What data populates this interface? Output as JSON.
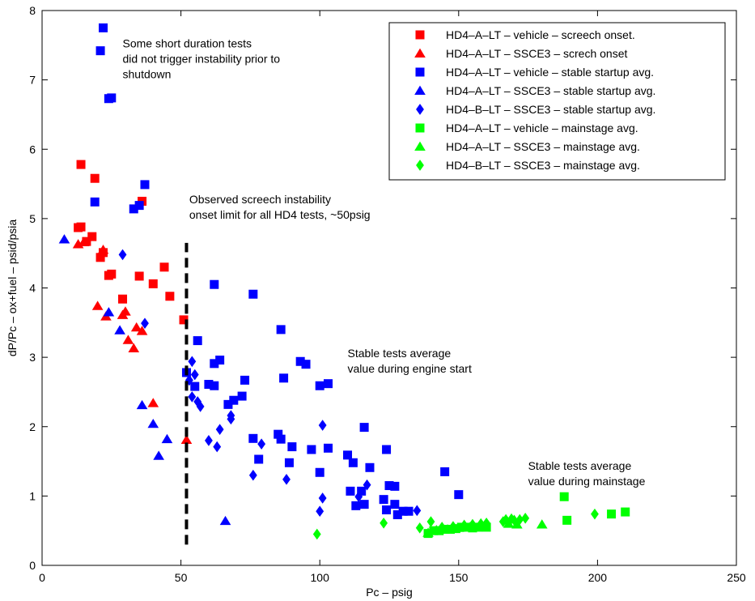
{
  "chart_data": {
    "type": "scatter",
    "xlabel": "Pc – psig",
    "ylabel": "dP/Pc – ox+fuel – psid/psia",
    "xlim": [
      0,
      250
    ],
    "ylim": [
      0,
      8
    ],
    "xticks": [
      0,
      50,
      100,
      150,
      200,
      250
    ],
    "yticks": [
      0,
      1,
      2,
      3,
      4,
      5,
      6,
      7,
      8
    ],
    "grid": false,
    "legend_position": "top-right",
    "series": [
      {
        "name": "HD4–A–LT – vehicle – screech onset.",
        "marker": "square",
        "color": "#ff0000",
        "points": [
          [
            13,
            4.87
          ],
          [
            14,
            5.78
          ],
          [
            14,
            4.88
          ],
          [
            16,
            4.67
          ],
          [
            18,
            4.74
          ],
          [
            19,
            5.58
          ],
          [
            21,
            4.44
          ],
          [
            22,
            4.51
          ],
          [
            24,
            4.18
          ],
          [
            25,
            4.2
          ],
          [
            29,
            3.84
          ],
          [
            35,
            4.17
          ],
          [
            36,
            5.25
          ],
          [
            40,
            4.06
          ],
          [
            44,
            4.3
          ],
          [
            46,
            3.88
          ],
          [
            51,
            3.54
          ]
        ]
      },
      {
        "name": "HD4–A–LT – SSCE3 – screch onset",
        "marker": "triangle",
        "color": "#ff0000",
        "points": [
          [
            13,
            4.63
          ],
          [
            15,
            4.66
          ],
          [
            20,
            3.74
          ],
          [
            22,
            4.55
          ],
          [
            23,
            3.59
          ],
          [
            29,
            3.61
          ],
          [
            30,
            3.66
          ],
          [
            31,
            3.25
          ],
          [
            33,
            3.13
          ],
          [
            34,
            3.43
          ],
          [
            36,
            3.38
          ],
          [
            40,
            2.34
          ],
          [
            52,
            1.81
          ]
        ]
      },
      {
        "name": "HD4–A–LT – vehicle – stable startup avg.",
        "marker": "square",
        "color": "#0000ff",
        "points": [
          [
            21,
            7.42
          ],
          [
            22,
            7.75
          ],
          [
            24,
            6.73
          ],
          [
            25,
            6.74
          ],
          [
            19,
            5.24
          ],
          [
            33,
            5.14
          ],
          [
            35,
            5.19
          ],
          [
            37,
            5.49
          ],
          [
            52,
            2.78
          ],
          [
            55,
            2.58
          ],
          [
            56,
            3.24
          ],
          [
            60,
            2.61
          ],
          [
            62,
            2.59
          ],
          [
            62,
            4.05
          ],
          [
            62,
            2.91
          ],
          [
            64,
            2.96
          ],
          [
            67,
            2.32
          ],
          [
            69,
            2.38
          ],
          [
            72,
            2.44
          ],
          [
            73,
            2.67
          ],
          [
            76,
            1.83
          ],
          [
            76,
            3.91
          ],
          [
            78,
            1.53
          ],
          [
            85,
            1.89
          ],
          [
            86,
            1.82
          ],
          [
            86,
            3.4
          ],
          [
            87,
            2.7
          ],
          [
            89,
            1.48
          ],
          [
            90,
            1.71
          ],
          [
            93,
            2.94
          ],
          [
            95,
            2.9
          ],
          [
            97,
            1.67
          ],
          [
            100,
            1.34
          ],
          [
            100,
            2.59
          ],
          [
            103,
            2.62
          ],
          [
            103,
            1.69
          ],
          [
            110,
            1.59
          ],
          [
            111,
            1.07
          ],
          [
            112,
            1.48
          ],
          [
            113,
            0.86
          ],
          [
            115,
            1.07
          ],
          [
            116,
            0.88
          ],
          [
            116,
            1.99
          ],
          [
            118,
            1.41
          ],
          [
            123,
            0.95
          ],
          [
            124,
            0.8
          ],
          [
            124,
            1.67
          ],
          [
            125,
            1.15
          ],
          [
            127,
            1.14
          ],
          [
            127,
            0.88
          ],
          [
            128,
            0.73
          ],
          [
            130,
            0.78
          ],
          [
            132,
            0.78
          ],
          [
            145,
            1.35
          ],
          [
            150,
            1.02
          ]
        ]
      },
      {
        "name": "HD4–A–LT – SSCE3 –   stable startup avg.",
        "marker": "triangle",
        "color": "#0000ff",
        "points": [
          [
            8,
            4.7
          ],
          [
            24,
            3.65
          ],
          [
            28,
            3.39
          ],
          [
            36,
            2.31
          ],
          [
            40,
            2.04
          ],
          [
            42,
            1.58
          ],
          [
            45,
            1.82
          ],
          [
            66,
            0.64
          ]
        ]
      },
      {
        "name": "HD4–B–LT – SSCE3 –   stable startup avg.",
        "marker": "diamond",
        "color": "#0000ff",
        "points": [
          [
            29,
            4.48
          ],
          [
            37,
            3.49
          ],
          [
            53,
            2.67
          ],
          [
            54,
            2.43
          ],
          [
            54,
            2.94
          ],
          [
            55,
            2.75
          ],
          [
            56,
            2.36
          ],
          [
            57,
            2.29
          ],
          [
            60,
            1.8
          ],
          [
            63,
            1.71
          ],
          [
            64,
            1.96
          ],
          [
            68,
            2.16
          ],
          [
            68,
            2.11
          ],
          [
            76,
            1.3
          ],
          [
            79,
            1.75
          ],
          [
            88,
            1.24
          ],
          [
            100,
            0.78
          ],
          [
            101,
            0.97
          ],
          [
            101,
            2.02
          ],
          [
            114,
            0.99
          ],
          [
            117,
            1.16
          ],
          [
            135,
            0.79
          ]
        ]
      },
      {
        "name": "HD4–A–LT – vehicle – mainstage avg.",
        "marker": "square",
        "color": "#00ff00",
        "points": [
          [
            139,
            0.46
          ],
          [
            141,
            0.5
          ],
          [
            143,
            0.5
          ],
          [
            145,
            0.52
          ],
          [
            147,
            0.52
          ],
          [
            149,
            0.53
          ],
          [
            151,
            0.55
          ],
          [
            153,
            0.55
          ],
          [
            155,
            0.54
          ],
          [
            157,
            0.55
          ],
          [
            159,
            0.56
          ],
          [
            160,
            0.55
          ],
          [
            188,
            0.99
          ],
          [
            189,
            0.65
          ],
          [
            205,
            0.74
          ],
          [
            210,
            0.77
          ]
        ]
      },
      {
        "name": "HD4–A–LT – SSCE3 –   mainstage avg.",
        "marker": "triangle",
        "color": "#00ff00",
        "points": [
          [
            139,
            0.47
          ],
          [
            142,
            0.51
          ],
          [
            146,
            0.52
          ],
          [
            150,
            0.54
          ],
          [
            154,
            0.55
          ],
          [
            158,
            0.57
          ],
          [
            168,
            0.6
          ],
          [
            171,
            0.59
          ],
          [
            180,
            0.59
          ]
        ]
      },
      {
        "name": "HD4–B–LT – SSCE3 –   mainstage avg.",
        "marker": "diamond",
        "color": "#00ff00",
        "points": [
          [
            99,
            0.45
          ],
          [
            123,
            0.61
          ],
          [
            136,
            0.54
          ],
          [
            140,
            0.63
          ],
          [
            144,
            0.55
          ],
          [
            148,
            0.56
          ],
          [
            152,
            0.58
          ],
          [
            155,
            0.59
          ],
          [
            158,
            0.6
          ],
          [
            160,
            0.61
          ],
          [
            166,
            0.63
          ],
          [
            167,
            0.66
          ],
          [
            169,
            0.67
          ],
          [
            170,
            0.65
          ],
          [
            172,
            0.66
          ],
          [
            174,
            0.68
          ],
          [
            199,
            0.74
          ]
        ]
      }
    ],
    "reference_line": {
      "x": 52,
      "y_range": [
        0.3,
        4.65
      ],
      "style": "dashed",
      "color": "#000000"
    },
    "annotations": [
      {
        "id": "short_tests",
        "lines": [
          "Some short duration tests",
          "did not trigger instability prior to",
          "shutdown"
        ],
        "x": 29,
        "y": 7.47
      },
      {
        "id": "screech_limit",
        "lines": [
          "Observed screech instability",
          "onset limit for all HD4 tests, ~50psig"
        ],
        "x": 53,
        "y": 5.22
      },
      {
        "id": "stable_start",
        "lines": [
          "Stable tests average",
          "value during engine start"
        ],
        "x": 110,
        "y": 3.0
      },
      {
        "id": "stable_main",
        "lines": [
          "Stable tests average",
          "value during mainstage"
        ],
        "x": 175,
        "y": 1.38
      }
    ]
  }
}
